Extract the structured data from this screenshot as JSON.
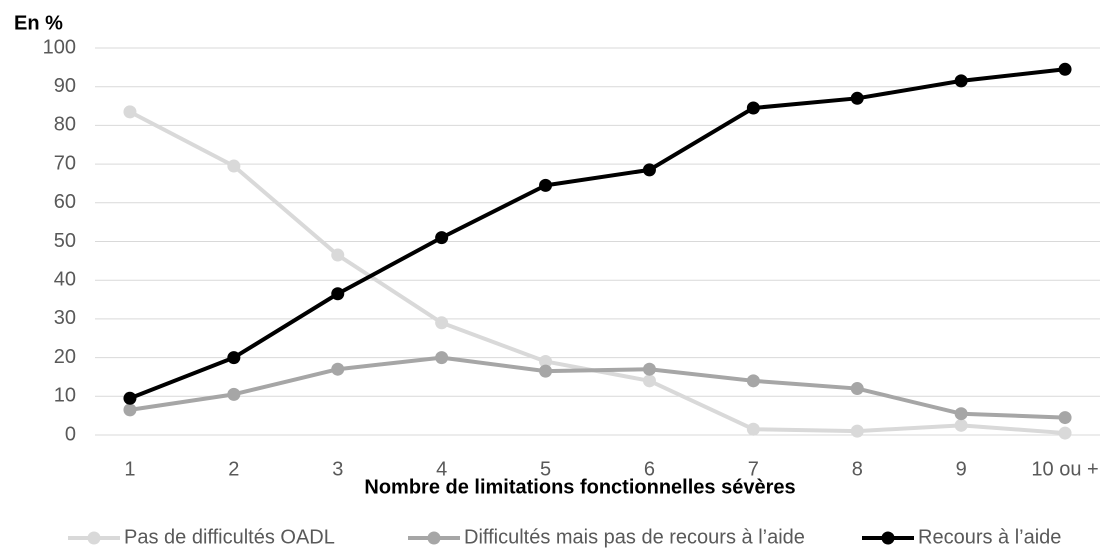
{
  "chart_data": {
    "type": "line",
    "title": "En %",
    "x_label": "Nombre de limitations fonctionnelles sévères",
    "categories": [
      "1",
      "2",
      "3",
      "4",
      "5",
      "6",
      "7",
      "8",
      "9",
      "10 ou +"
    ],
    "series": [
      {
        "name": "Pas de difficultés OADL",
        "color": "#d9d9d9",
        "values": [
          83.5,
          69.5,
          46.5,
          29,
          19,
          14,
          1.5,
          1,
          2.5,
          0.5
        ]
      },
      {
        "name": "Difficultés mais pas de recours à l’aide",
        "color": "#a6a6a6",
        "values": [
          6.5,
          10.5,
          17,
          20,
          16.5,
          17,
          14,
          12,
          5.5,
          4.5
        ]
      },
      {
        "name": "Recours à l’aide",
        "color": "#000000",
        "values": [
          9.5,
          20,
          36.5,
          51,
          64.5,
          68.5,
          84.5,
          87,
          91.5,
          94.5
        ]
      }
    ],
    "ylim": [
      0,
      100
    ],
    "yticks": [
      0,
      10,
      20,
      30,
      40,
      50,
      60,
      70,
      80,
      90,
      100
    ],
    "grid": true,
    "legend": "bottom"
  }
}
